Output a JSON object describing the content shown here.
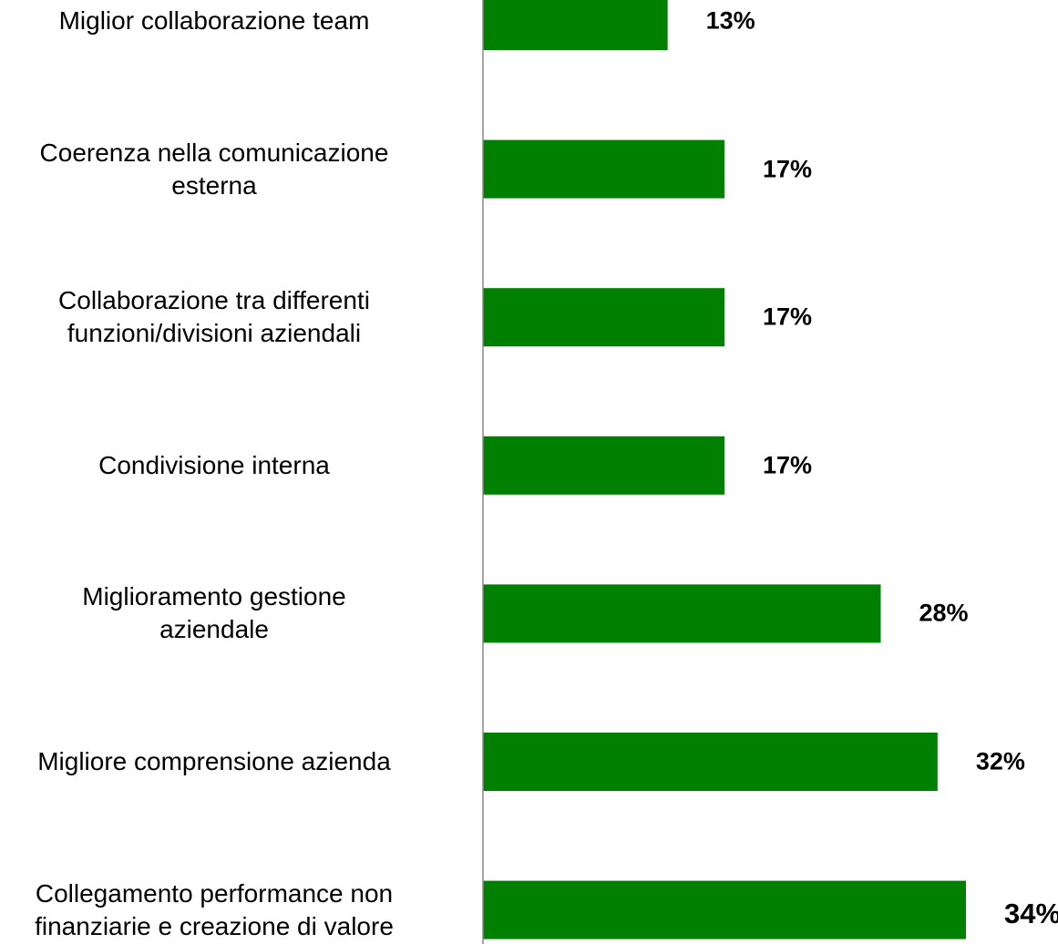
{
  "chart_data": {
    "type": "bar",
    "orientation": "horizontal",
    "categories": [
      "Miglior collaborazione team",
      "Coerenza nella comunicazione\nesterna",
      "Collaborazione tra differenti\nfunzioni/divisioni aziendali",
      "Condivisione interna",
      "Miglioramento gestione\naziendale",
      "Migliore comprensione azienda",
      "Collegamento performance non\nfinanziarie e creazione di valore"
    ],
    "values": [
      13,
      17,
      17,
      17,
      28,
      32,
      34
    ],
    "value_labels": [
      "13%",
      "17%",
      "17%",
      "17%",
      "28%",
      "32%",
      "34%"
    ],
    "color": "#008000",
    "xlim": [
      0,
      34
    ]
  }
}
